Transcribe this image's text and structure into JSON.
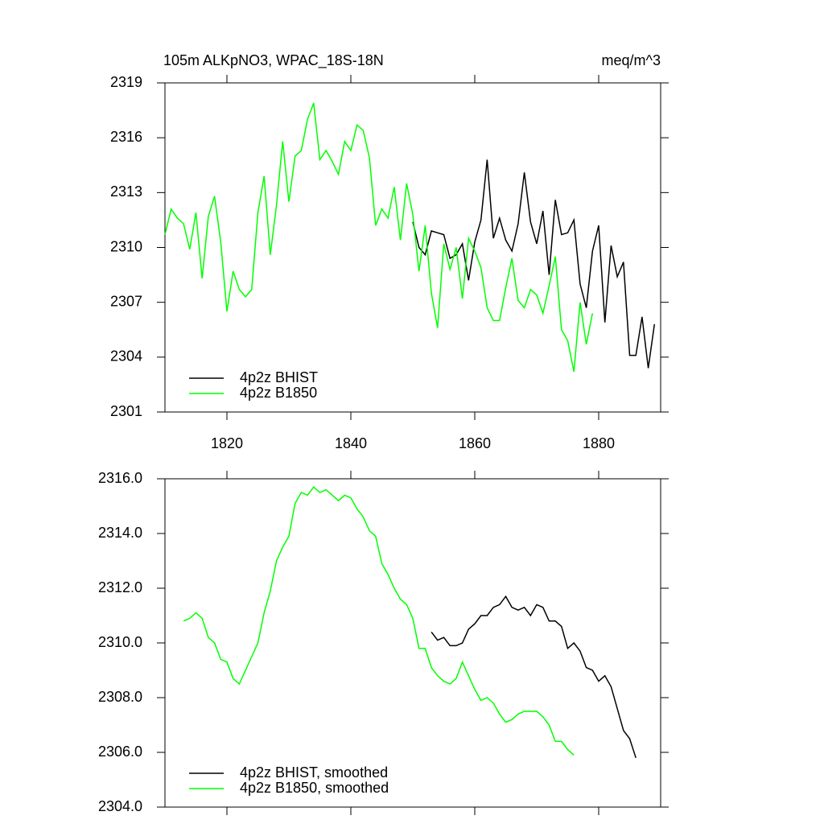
{
  "chart_data": [
    {
      "type": "line",
      "title": "105m ALKpNO3, WPAC_18S-18N",
      "units": "meq/m^3",
      "xlim": [
        1810,
        1890
      ],
      "xticks": [
        1820,
        1840,
        1860,
        1880
      ],
      "xtick_labels": true,
      "ylim": [
        2301,
        2319
      ],
      "yticks": [
        2301,
        2304,
        2307,
        2310,
        2313,
        2316,
        2319
      ],
      "series": [
        {
          "name": "4p2z BHIST",
          "color": "#000000",
          "x": [
            1850,
            1851,
            1852,
            1853,
            1854,
            1855,
            1856,
            1857,
            1858,
            1859,
            1860,
            1861,
            1862,
            1863,
            1864,
            1865,
            1866,
            1867,
            1868,
            1869,
            1870,
            1871,
            1872,
            1873,
            1874,
            1875,
            1876,
            1877,
            1878,
            1879,
            1880,
            1881,
            1882,
            1883,
            1884,
            1885,
            1886,
            1887,
            1888,
            1889
          ],
          "values": [
            2311.4,
            2310.0,
            2309.6,
            2310.9,
            2310.8,
            2310.7,
            2309.4,
            2309.6,
            2310.2,
            2308.2,
            2310.3,
            2311.5,
            2314.8,
            2310.5,
            2311.6,
            2310.4,
            2309.8,
            2311.3,
            2314.1,
            2311.4,
            2310.2,
            2312.0,
            2308.5,
            2312.6,
            2310.7,
            2310.8,
            2311.5,
            2308.0,
            2306.7,
            2309.8,
            2311.2,
            2305.9,
            2310.1,
            2308.4,
            2309.2,
            2304.1,
            2304.1,
            2306.2,
            2303.4,
            2305.8
          ]
        },
        {
          "name": "4p2z B1850",
          "color": "#00ff00",
          "x": [
            1810,
            1811,
            1812,
            1813,
            1814,
            1815,
            1816,
            1817,
            1818,
            1819,
            1820,
            1821,
            1822,
            1823,
            1824,
            1825,
            1826,
            1827,
            1828,
            1829,
            1830,
            1831,
            1832,
            1833,
            1834,
            1835,
            1836,
            1837,
            1838,
            1839,
            1840,
            1841,
            1842,
            1843,
            1844,
            1845,
            1846,
            1847,
            1848,
            1849,
            1850,
            1851,
            1852,
            1853,
            1854,
            1855,
            1856,
            1857,
            1858,
            1859,
            1860,
            1861,
            1862,
            1863,
            1864,
            1865,
            1866,
            1867,
            1868,
            1869,
            1870,
            1871,
            1872,
            1873,
            1874,
            1875,
            1876,
            1877,
            1878,
            1879
          ],
          "values": [
            2310.7,
            2312.1,
            2311.6,
            2311.3,
            2309.9,
            2311.9,
            2308.3,
            2311.7,
            2312.8,
            2310.3,
            2306.5,
            2308.7,
            2307.7,
            2307.3,
            2307.7,
            2311.9,
            2313.9,
            2309.6,
            2312.3,
            2315.8,
            2312.5,
            2315.0,
            2315.3,
            2317.0,
            2317.9,
            2314.8,
            2315.3,
            2314.7,
            2314.0,
            2315.8,
            2315.3,
            2316.7,
            2316.4,
            2314.9,
            2311.2,
            2312.1,
            2311.6,
            2313.3,
            2310.4,
            2313.5,
            2311.8,
            2308.7,
            2311.2,
            2307.5,
            2305.6,
            2310.2,
            2308.8,
            2310.0,
            2307.2,
            2310.5,
            2309.8,
            2308.9,
            2306.7,
            2306.0,
            2306.0,
            2307.8,
            2309.4,
            2307.1,
            2306.7,
            2307.7,
            2307.4,
            2306.4,
            2307.9,
            2309.5,
            2305.5,
            2304.9,
            2303.2,
            2307.0,
            2304.7,
            2306.4
          ]
        }
      ]
    },
    {
      "type": "line",
      "xlim": [
        1810,
        1890
      ],
      "xticks": [
        1820,
        1840,
        1860,
        1880
      ],
      "xtick_labels": false,
      "ylim": [
        2304,
        2316
      ],
      "yticks": [
        {
          "value": 2304,
          "label": "2304.0"
        },
        {
          "value": 2306,
          "label": "2306.0"
        },
        {
          "value": 2308,
          "label": "2308.0"
        },
        {
          "value": 2310,
          "label": "2310.0"
        },
        {
          "value": 2312,
          "label": "2312.0"
        },
        {
          "value": 2314,
          "label": "2314.0"
        },
        {
          "value": 2316,
          "label": "2316.0"
        }
      ],
      "series": [
        {
          "name": "4p2z BHIST, smoothed",
          "color": "#000000",
          "x": [
            1853,
            1854,
            1855,
            1856,
            1857,
            1858,
            1859,
            1860,
            1861,
            1862,
            1863,
            1864,
            1865,
            1866,
            1867,
            1868,
            1869,
            1870,
            1871,
            1872,
            1873,
            1874,
            1875,
            1876,
            1877,
            1878,
            1879,
            1880,
            1881,
            1882,
            1883,
            1884,
            1885,
            1886
          ],
          "values": [
            2310.4,
            2310.1,
            2310.2,
            2309.9,
            2309.9,
            2310.0,
            2310.5,
            2310.7,
            2311.0,
            2311.0,
            2311.3,
            2311.4,
            2311.7,
            2311.3,
            2311.2,
            2311.3,
            2311.0,
            2311.4,
            2311.3,
            2310.8,
            2310.8,
            2310.6,
            2309.8,
            2310.0,
            2309.7,
            2309.1,
            2309.0,
            2308.6,
            2308.8,
            2308.4,
            2307.6,
            2306.8,
            2306.5,
            2305.8
          ]
        },
        {
          "name": "4p2z B1850, smoothed",
          "color": "#00ff00",
          "x": [
            1813,
            1814,
            1815,
            1816,
            1817,
            1818,
            1819,
            1820,
            1821,
            1822,
            1823,
            1824,
            1825,
            1826,
            1827,
            1828,
            1829,
            1830,
            1831,
            1832,
            1833,
            1834,
            1835,
            1836,
            1837,
            1838,
            1839,
            1840,
            1841,
            1842,
            1843,
            1844,
            1845,
            1846,
            1847,
            1848,
            1849,
            1850,
            1851,
            1852,
            1853,
            1854,
            1855,
            1856,
            1857,
            1858,
            1859,
            1860,
            1861,
            1862,
            1863,
            1864,
            1865,
            1866,
            1867,
            1868,
            1869,
            1870,
            1871,
            1872,
            1873,
            1874,
            1875,
            1876
          ],
          "values": [
            2310.8,
            2310.9,
            2311.1,
            2310.9,
            2310.2,
            2310.0,
            2309.4,
            2309.3,
            2308.7,
            2308.5,
            2309.0,
            2309.5,
            2310.0,
            2311.1,
            2311.9,
            2313.0,
            2313.5,
            2313.9,
            2315.1,
            2315.5,
            2315.4,
            2315.7,
            2315.5,
            2315.6,
            2315.4,
            2315.2,
            2315.4,
            2315.3,
            2314.9,
            2314.6,
            2314.1,
            2313.9,
            2312.9,
            2312.5,
            2312.0,
            2311.6,
            2311.4,
            2310.9,
            2309.8,
            2309.8,
            2309.1,
            2308.8,
            2308.6,
            2308.5,
            2308.7,
            2309.3,
            2308.8,
            2308.3,
            2307.9,
            2308.0,
            2307.8,
            2307.4,
            2307.1,
            2307.2,
            2307.4,
            2307.5,
            2307.5,
            2307.5,
            2307.3,
            2307.0,
            2306.4,
            2306.4,
            2306.1,
            2305.9
          ]
        }
      ]
    }
  ]
}
